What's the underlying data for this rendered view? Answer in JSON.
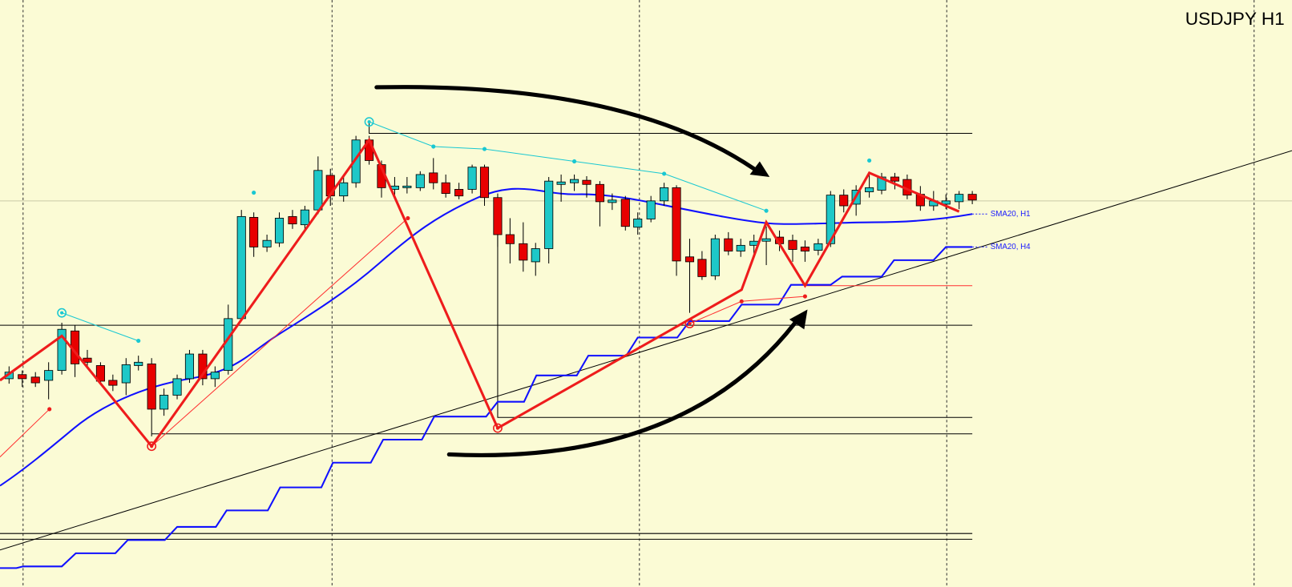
{
  "header": {
    "title": "USDJPY H1"
  },
  "labels": {
    "sma_h1": "SMA20, H1",
    "sma_h4": "SMA20, H4"
  }
}
